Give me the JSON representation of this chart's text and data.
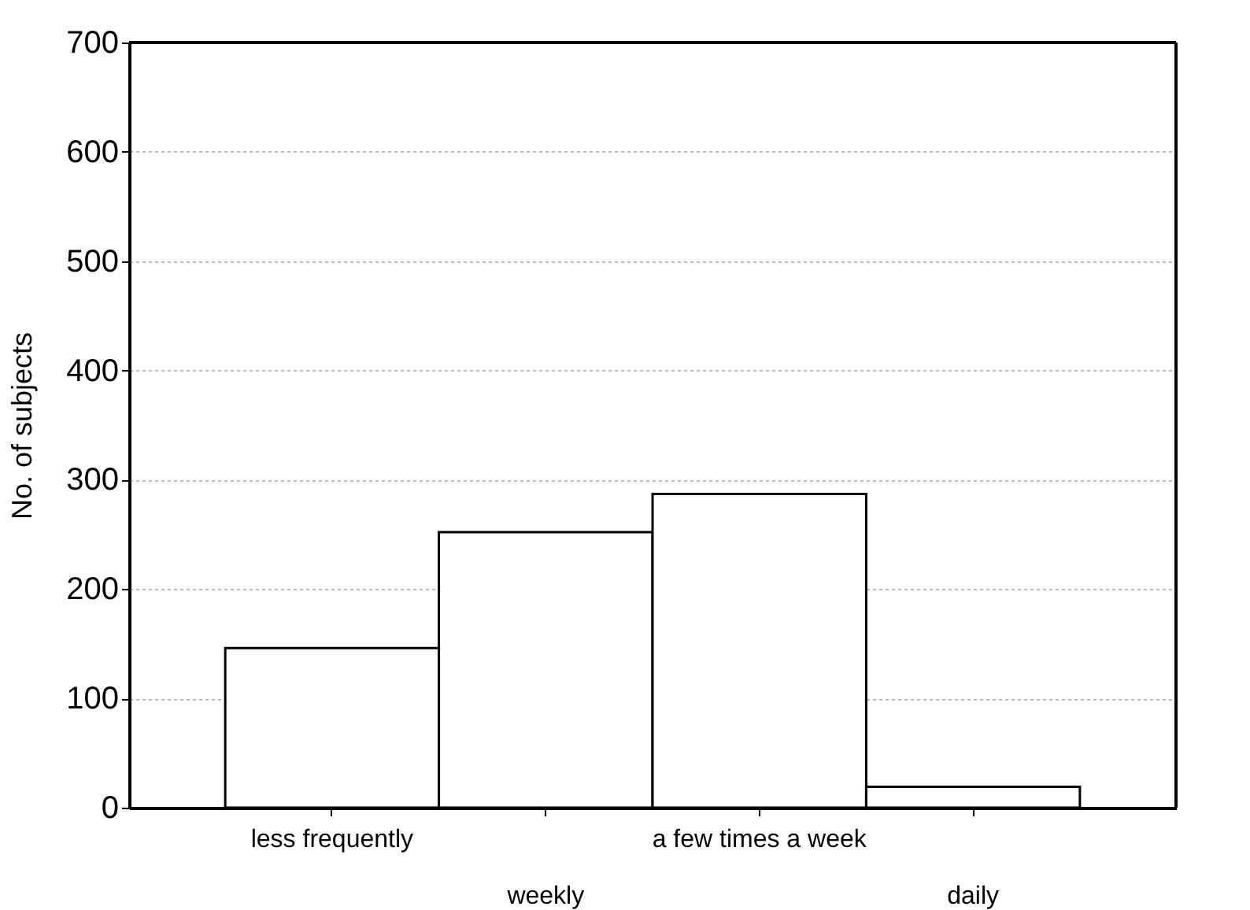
{
  "chart_data": {
    "type": "bar",
    "ylabel": "No. of subjects",
    "categories": [
      "less frequently",
      "weekly",
      "a few times a week",
      "daily"
    ],
    "values": [
      146,
      252,
      287,
      19
    ],
    "ylim": [
      0,
      700
    ],
    "yticks": [
      0,
      100,
      200,
      300,
      400,
      500,
      600,
      700
    ],
    "grid": "y"
  }
}
